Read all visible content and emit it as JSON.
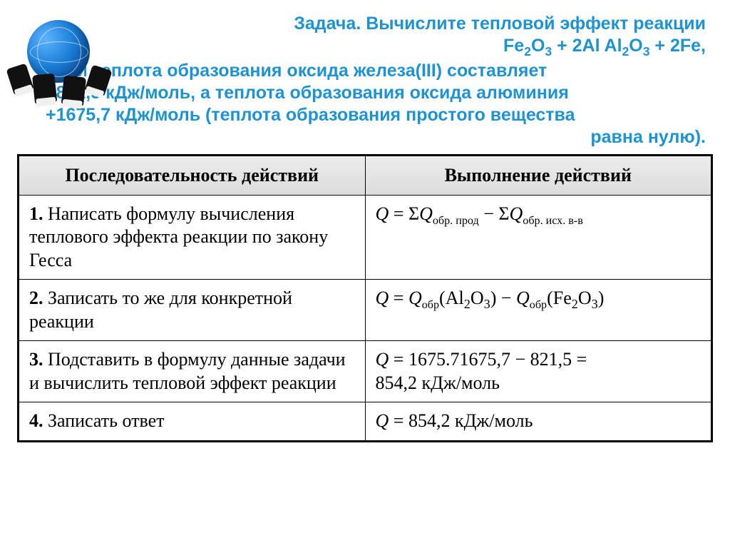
{
  "colors": {
    "accent": "#1f93d2",
    "text": "#000000",
    "header_bg_top": "#ececec",
    "header_bg_bottom": "#dcdcdc",
    "border": "#000000",
    "background": "#ffffff",
    "globe_light": "#5eb3ff",
    "globe_dark": "#063a7a"
  },
  "typography": {
    "heading_family": "Segoe UI / Arial",
    "heading_size_pt": 19,
    "heading_weight": "bold",
    "table_family": "Times New Roman",
    "table_size_pt": 20
  },
  "title": {
    "line1": "Задача. Вычислите тепловой эффект реакции",
    "equation_plain": "Fe2O3 + 2Al Al2O3 + 2Fe,",
    "line3a": "если теплота образования оксида железа(III) составляет",
    "line3b": "+821,5 кДж/моль, а теплота образования оксида алюминия",
    "line3c": "+1675,7 кДж/моль (теплота образования простого вещества",
    "line3d": "равна нулю)."
  },
  "table": {
    "columns": [
      "Последовательность действий",
      "Выполнение действий"
    ],
    "rows": [
      {
        "num": "1.",
        "action": "Написать формулу вычисления теплового эффекта реакции по закону Гесса",
        "result_plain": "Q = ΣQобр. прод − ΣQобр. исх. в-в"
      },
      {
        "num": "2.",
        "action": "Записать то же для конкретной реакции",
        "result_plain": "Q = Qобр(Al2O3) − Qобр(Fe2O3)"
      },
      {
        "num": "3.",
        "action": "Подставить в формулу данные задачи и вычислить тепловой эффект реакции",
        "result_line1": "Q = 1675,7 − 821,5 =",
        "result_line2": "854,2 кДж/моль"
      },
      {
        "num": "4.",
        "action": "Записать ответ",
        "result_plain": "Q = 854,2 кДж/моль"
      }
    ]
  },
  "values": {
    "dHf_Fe2O3_kJmol": 821.5,
    "dHf_Al2O3_kJmol": 1675.7,
    "Q_reaction_kJmol": 854.2
  }
}
